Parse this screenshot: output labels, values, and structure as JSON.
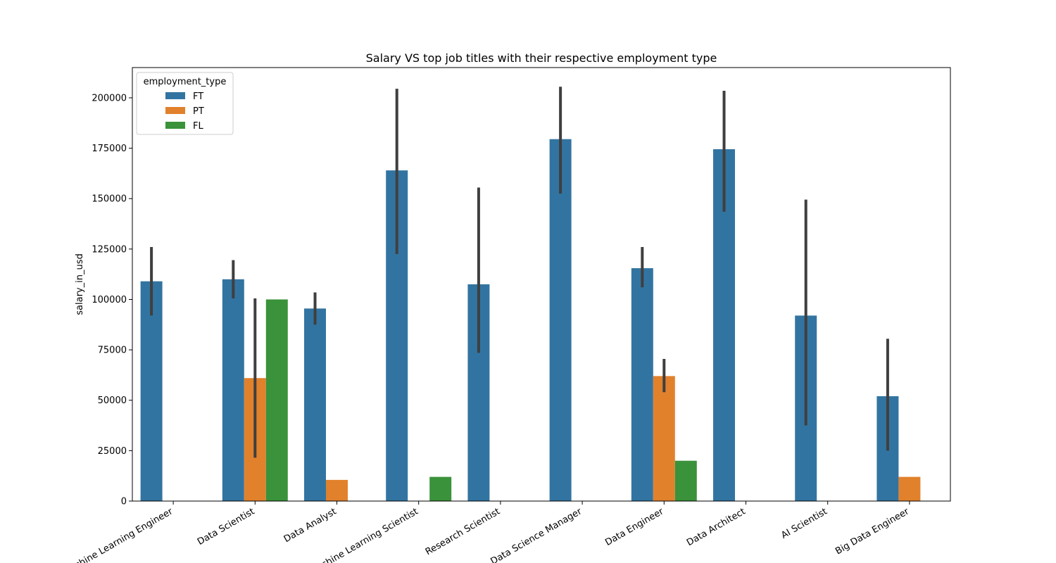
{
  "chart_data": {
    "type": "bar",
    "title": "Salary VS top job titles with their respective employment type",
    "xlabel": "",
    "ylabel": "salary_in_usd",
    "ylim": [
      0,
      215000
    ],
    "yticks": [
      0,
      25000,
      50000,
      75000,
      100000,
      125000,
      150000,
      175000,
      200000
    ],
    "ytick_labels": [
      "0",
      "25000",
      "50000",
      "75000",
      "100000",
      "125000",
      "150000",
      "175000",
      "200000"
    ],
    "categories": [
      "Machine Learning Engineer",
      "Data Scientist",
      "Data Analyst",
      "Machine Learning Scientist",
      "Research Scientist",
      "Data Science Manager",
      "Data Engineer",
      "Data Architect",
      "AI Scientist",
      "Big Data Engineer"
    ],
    "legend": {
      "title": "employment_type",
      "location": "upper left"
    },
    "grid": false,
    "series": [
      {
        "name": "FT",
        "color": "#3274a1",
        "values": [
          109000,
          110000,
          95500,
          164000,
          107500,
          179500,
          115500,
          174500,
          92000,
          52000
        ],
        "error_low": [
          92000,
          100500,
          87500,
          122500,
          73500,
          152500,
          106000,
          143500,
          37500,
          25000
        ],
        "error_high": [
          126000,
          119500,
          103500,
          204500,
          155500,
          205500,
          126000,
          203500,
          149500,
          80500
        ]
      },
      {
        "name": "PT",
        "color": "#e1812c",
        "values": [
          null,
          61000,
          10500,
          null,
          null,
          null,
          62000,
          null,
          null,
          12000
        ],
        "values_note": "",
        "error_low": [
          null,
          21500,
          null,
          null,
          null,
          null,
          54000,
          null,
          null,
          null
        ],
        "error_high": [
          null,
          100500,
          null,
          null,
          null,
          null,
          70500,
          null,
          null,
          null
        ]
      },
      {
        "name": "FL",
        "color": "#3a923a",
        "values": [
          null,
          100000,
          null,
          12000,
          null,
          null,
          20000,
          null,
          null,
          null
        ],
        "error_low": [
          null,
          null,
          null,
          null,
          null,
          null,
          null,
          null,
          null,
          null
        ],
        "error_high": [
          null,
          null,
          null,
          null,
          null,
          null,
          null,
          null,
          null,
          null
        ]
      }
    ]
  }
}
